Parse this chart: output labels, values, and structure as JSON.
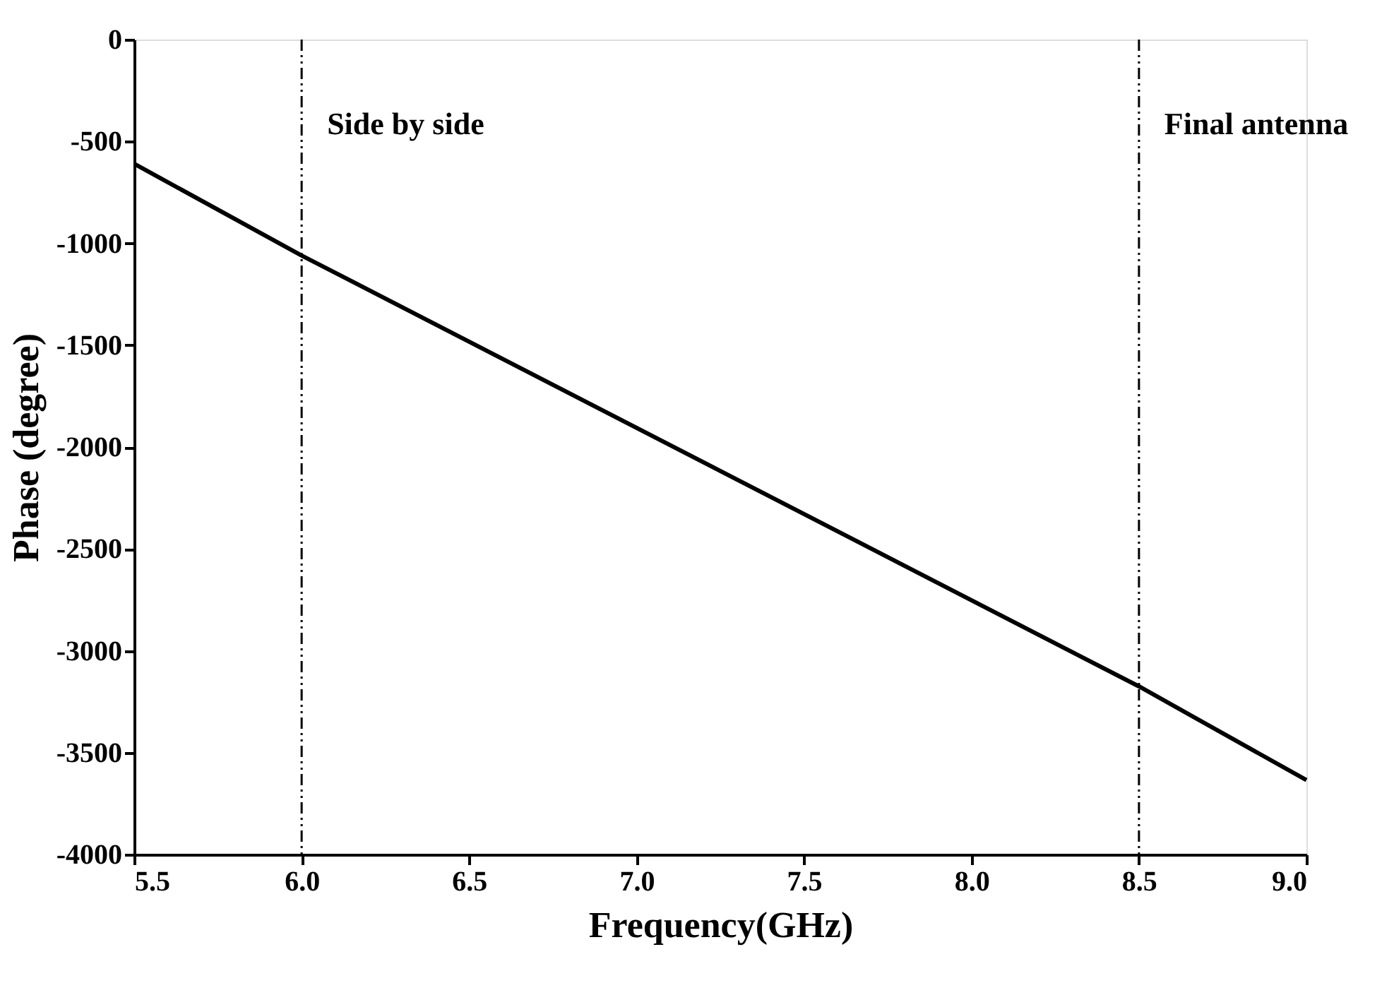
{
  "chart_data": {
    "type": "line",
    "xlabel": "Frequency(GHz)",
    "ylabel": "Phase (degree)",
    "x": [
      5.5,
      6.0,
      8.5,
      9.0
    ],
    "series": [
      {
        "color": "#000000",
        "values": [
          -610,
          -1060,
          -3175,
          -3635
        ]
      }
    ],
    "xlim": [
      5.5,
      9.0
    ],
    "xticks": [
      {
        "value": 5.5,
        "label": "5.5"
      },
      {
        "value": 6.0,
        "label": "6.0"
      },
      {
        "value": 6.5,
        "label": "6.5"
      },
      {
        "value": 7.0,
        "label": "7.0"
      },
      {
        "value": 7.5,
        "label": "7.5"
      },
      {
        "value": 8.0,
        "label": "8.0"
      },
      {
        "value": 8.5,
        "label": "8.5"
      },
      {
        "value": 9.0,
        "label": "9.0"
      }
    ],
    "ylim": [
      -4000,
      0
    ],
    "yticks": [
      -4000,
      -3500,
      -3000,
      -2500,
      -2000,
      -1500,
      -1000,
      -500,
      0
    ],
    "ref_lines": [
      {
        "axis": "x",
        "value": 6.0,
        "label": "Side by side",
        "color": "#000000",
        "line_style": "dashed"
      },
      {
        "axis": "x",
        "value": 8.5,
        "label": "Final antenna",
        "color": "#000000",
        "line_style": "dashed"
      }
    ],
    "grid": false,
    "marker": "none",
    "line_style": "solid"
  }
}
